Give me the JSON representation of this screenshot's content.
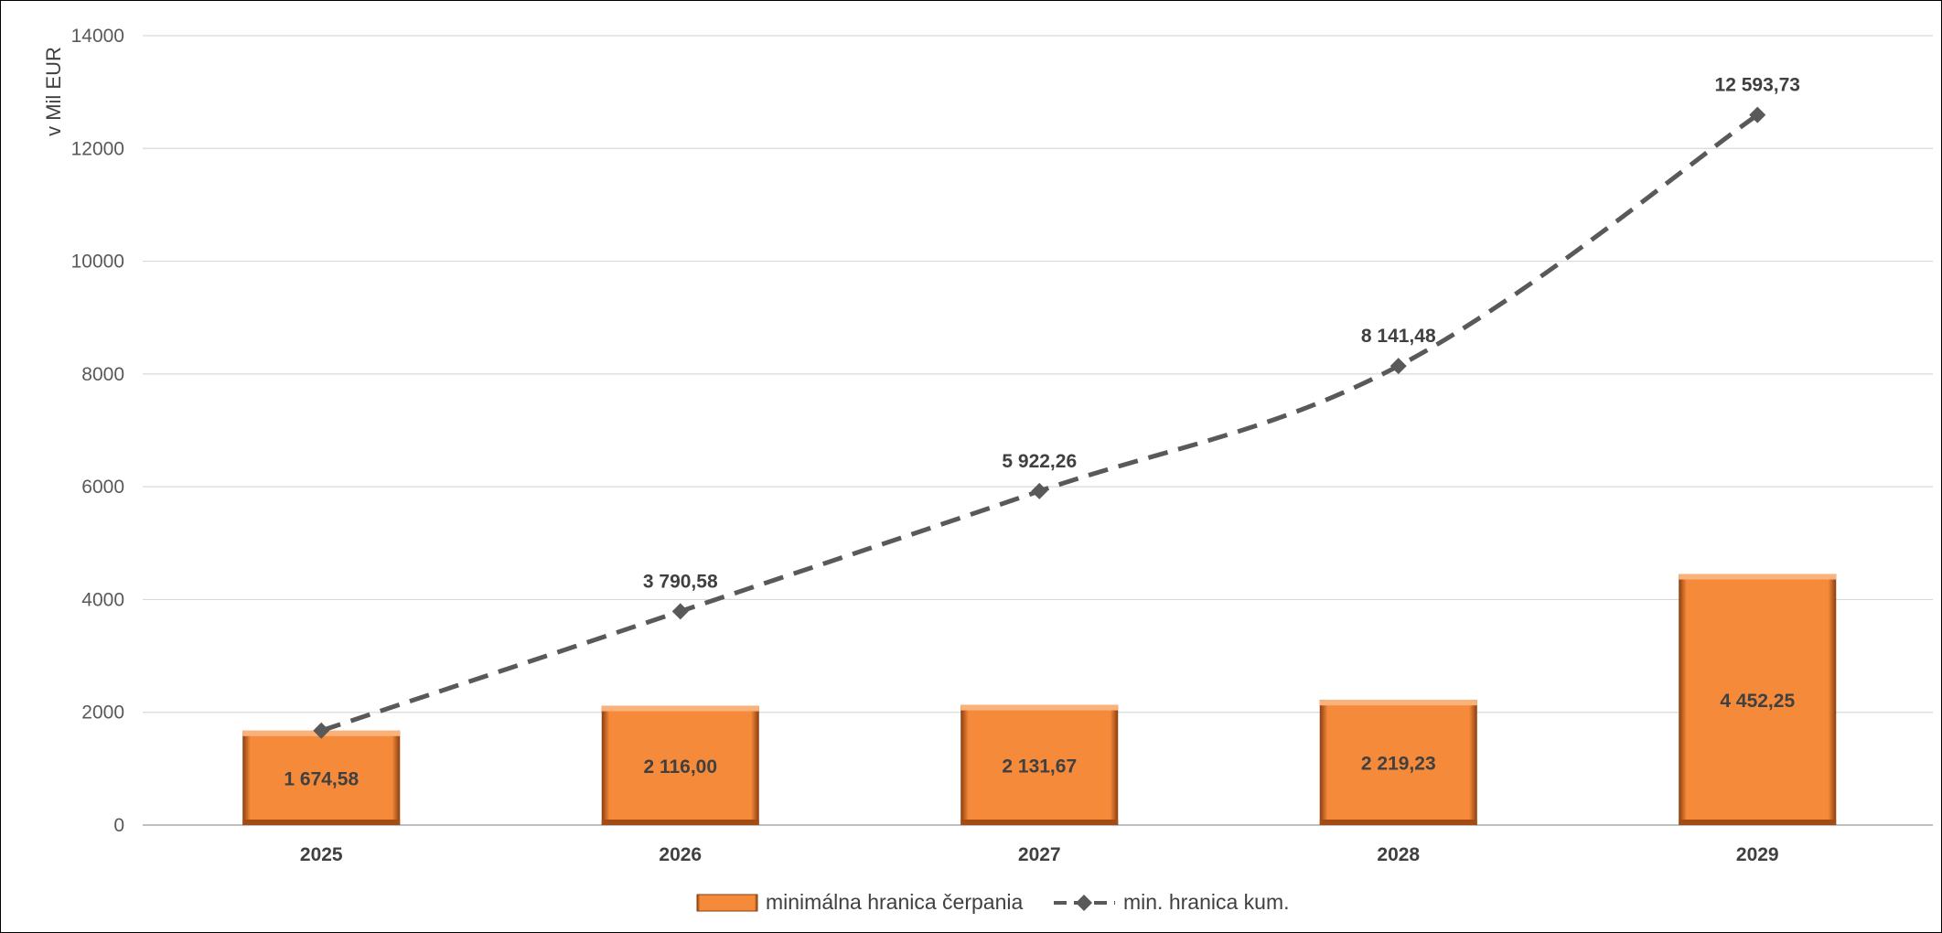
{
  "chart_data": {
    "type": "bar",
    "title": "",
    "xlabel": "",
    "ylabel": "v Mil EUR",
    "ylim": [
      0,
      14000
    ],
    "yticks": [
      0,
      2000,
      4000,
      6000,
      8000,
      10000,
      12000,
      14000
    ],
    "grid": true,
    "legend_position": "bottom",
    "categories": [
      "2025",
      "2026",
      "2027",
      "2028",
      "2029"
    ],
    "series": [
      {
        "name": "minimálna hranica čerpania",
        "type": "bar",
        "color": "#F58A3A",
        "values": [
          1674.58,
          2116.0,
          2131.67,
          2219.23,
          4452.25
        ],
        "labels": [
          "1 674,58",
          "2 116,00",
          "2 131,67",
          "2 219,23",
          "4 452,25"
        ]
      },
      {
        "name": "min. hranica kum.",
        "type": "line",
        "style": "dashed",
        "marker": "diamond",
        "color": "#595959",
        "values": [
          1674.58,
          3790.58,
          5922.26,
          8141.48,
          12593.73
        ],
        "labels": [
          "",
          "3 790,58",
          "5 922,26",
          "8 141,48",
          "12 593,73"
        ]
      }
    ]
  }
}
